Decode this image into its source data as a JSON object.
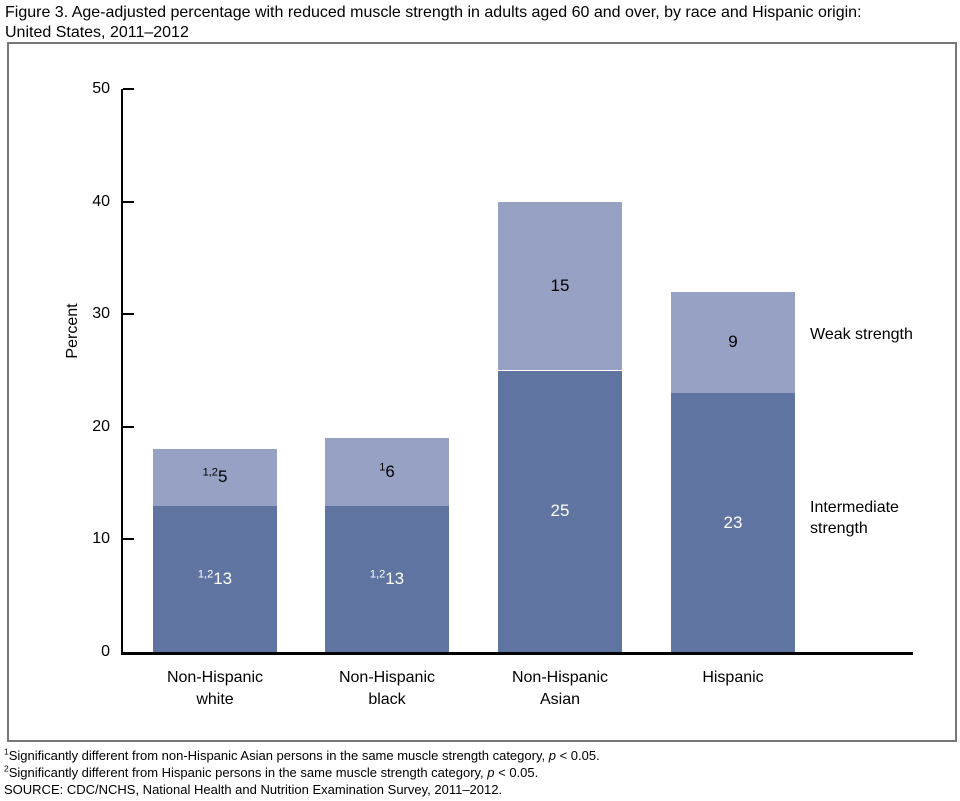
{
  "figure": {
    "title_line1": "Figure 3. Age-adjusted percentage with reduced muscle strength in adults aged 60 and over, by race and Hispanic origin:",
    "title_line2": "United States, 2011–2012"
  },
  "chart_data": {
    "type": "bar",
    "stacked": true,
    "title": "Age-adjusted percentage with reduced muscle strength in adults aged 60 and over, by race and Hispanic origin: United States, 2011–2012",
    "xlabel": "",
    "ylabel": "Percent",
    "ylim": [
      0,
      50
    ],
    "yticks": [
      0,
      10,
      20,
      30,
      40,
      50
    ],
    "grid": false,
    "legend_position": "right-of-last-bar",
    "categories": [
      "Non-Hispanic white",
      "Non-Hispanic black",
      "Non-Hispanic Asian",
      "Hispanic"
    ],
    "series": [
      {
        "key": "intermediate",
        "name": "Intermediate strength",
        "color": "#5f74a1",
        "label_color": "#ffffff",
        "values": [
          13,
          13,
          25,
          23
        ],
        "value_superscripts": [
          "1,2",
          "1,2",
          "",
          ""
        ]
      },
      {
        "key": "weak",
        "name": "Weak strength",
        "color": "#96a1c3",
        "label_color": "#000000",
        "values": [
          5,
          6,
          15,
          9
        ],
        "value_superscripts": [
          "1,2",
          "1",
          "",
          ""
        ]
      }
    ]
  },
  "footnotes": [
    {
      "sup": "1",
      "text": "Significantly different from non-Hispanic Asian persons in the same muscle strength category, ",
      "italic": "p",
      "rest": " < 0.05."
    },
    {
      "sup": "2",
      "text": "Significantly different from Hispanic persons in the same muscle strength category, ",
      "italic": "p",
      "rest": " < 0.05."
    },
    {
      "sup": "",
      "text": "SOURCE: CDC/NCHS, National Health and Nutrition Examination Survey, 2011–2012.",
      "italic": "",
      "rest": ""
    }
  ]
}
